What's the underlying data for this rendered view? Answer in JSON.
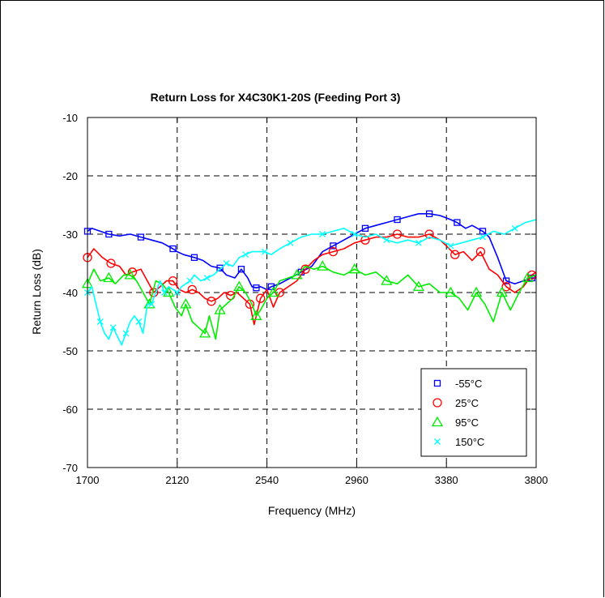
{
  "chart_data": {
    "type": "line",
    "title": "Return Loss for X4C30K1-20S (Feeding Port 3)",
    "xlabel": "Frequency (MHz)",
    "ylabel": "Return Loss (dB)",
    "xlim": [
      1700,
      3800
    ],
    "ylim": [
      -70,
      -10
    ],
    "xticks": [
      1700,
      2120,
      2540,
      2960,
      3380,
      3800
    ],
    "yticks": [
      -10,
      -20,
      -30,
      -40,
      -50,
      -60,
      -70
    ],
    "grid": true,
    "legend_position": "bottom-right",
    "series": [
      {
        "name": "-55°C",
        "color": "#0000ff",
        "marker": "square",
        "x": [
          1700,
          1720,
          1760,
          1800,
          1850,
          1900,
          1950,
          2000,
          2050,
          2100,
          2120,
          2150,
          2200,
          2240,
          2280,
          2320,
          2350,
          2390,
          2420,
          2450,
          2470,
          2490,
          2510,
          2540,
          2560,
          2600,
          2650,
          2700,
          2750,
          2800,
          2850,
          2900,
          2950,
          3000,
          3050,
          3100,
          3150,
          3200,
          3250,
          3300,
          3350,
          3400,
          3430,
          3470,
          3500,
          3550,
          3580,
          3620,
          3660,
          3700,
          3740,
          3780,
          3800
        ],
        "y": [
          -29.5,
          -29,
          -29.5,
          -30,
          -30.3,
          -30,
          -30.5,
          -31,
          -31.5,
          -32.5,
          -33,
          -33.5,
          -34,
          -34.5,
          -35.5,
          -35.8,
          -37,
          -37.5,
          -36,
          -37.5,
          -39,
          -39.2,
          -39,
          -39.5,
          -39,
          -38.5,
          -37.5,
          -36.5,
          -35.5,
          -33,
          -32,
          -31,
          -30,
          -29,
          -28.5,
          -28,
          -27.5,
          -27,
          -26.5,
          -26.5,
          -26.8,
          -27.5,
          -28,
          -29,
          -28.5,
          -29.5,
          -30.5,
          -34,
          -38,
          -38.5,
          -38,
          -37.5,
          -37.5
        ]
      },
      {
        "name": "25°C",
        "color": "#ff0000",
        "marker": "circle",
        "x": [
          1700,
          1730,
          1770,
          1810,
          1850,
          1880,
          1910,
          1950,
          1980,
          2010,
          2040,
          2070,
          2100,
          2130,
          2160,
          2190,
          2220,
          2250,
          2280,
          2310,
          2340,
          2370,
          2400,
          2430,
          2460,
          2480,
          2490,
          2510,
          2540,
          2570,
          2600,
          2640,
          2680,
          2720,
          2760,
          2800,
          2850,
          2900,
          2950,
          3000,
          3050,
          3100,
          3150,
          3200,
          3250,
          3300,
          3350,
          3380,
          3420,
          3460,
          3500,
          3540,
          3580,
          3620,
          3660,
          3700,
          3740,
          3780,
          3800
        ],
        "y": [
          -34,
          -32.5,
          -34,
          -35,
          -35.5,
          -37,
          -36.5,
          -36,
          -38,
          -40,
          -39,
          -38,
          -38,
          -39.5,
          -40,
          -39.5,
          -40,
          -41,
          -41.5,
          -41,
          -40,
          -40.5,
          -40,
          -41,
          -42,
          -45.5,
          -44,
          -41,
          -39.5,
          -42.5,
          -40,
          -39,
          -38,
          -36,
          -34.5,
          -33.5,
          -33,
          -32.5,
          -31.5,
          -31,
          -30.5,
          -30.5,
          -30,
          -30.5,
          -30.5,
          -30,
          -31,
          -32,
          -33.5,
          -33,
          -34.5,
          -33,
          -36,
          -37,
          -39,
          -40,
          -39,
          -37,
          -36.5
        ]
      },
      {
        "name": "95°C",
        "color": "#00ee00",
        "marker": "triangle",
        "x": [
          1700,
          1730,
          1760,
          1800,
          1830,
          1870,
          1900,
          1930,
          1960,
          1990,
          2020,
          2050,
          2080,
          2110,
          2140,
          2160,
          2190,
          2220,
          2250,
          2270,
          2300,
          2320,
          2350,
          2380,
          2410,
          2440,
          2470,
          2490,
          2510,
          2540,
          2570,
          2600,
          2640,
          2680,
          2720,
          2760,
          2800,
          2850,
          2900,
          2950,
          3000,
          3050,
          3100,
          3150,
          3200,
          3250,
          3300,
          3350,
          3400,
          3440,
          3480,
          3520,
          3560,
          3600,
          3640,
          3680,
          3720,
          3760,
          3800
        ],
        "y": [
          -38.5,
          -36,
          -38,
          -37.5,
          -38.5,
          -37,
          -37,
          -38,
          -40,
          -42,
          -38,
          -38.5,
          -40,
          -42.5,
          -44,
          -42,
          -45,
          -46,
          -47,
          -44,
          -48,
          -43,
          -42,
          -41,
          -39,
          -40,
          -42,
          -44,
          -43,
          -41,
          -40,
          -38,
          -37.5,
          -37,
          -35.5,
          -36,
          -35.5,
          -36.5,
          -37,
          -36,
          -37,
          -36.5,
          -38,
          -38.5,
          -37,
          -39,
          -38.5,
          -40,
          -40,
          -41,
          -43,
          -40,
          -42,
          -45,
          -40,
          -43,
          -40,
          -37.5,
          -37
        ]
      },
      {
        "name": "150°C",
        "color": "#00ffff",
        "marker": "x",
        "x": [
          1700,
          1720,
          1740,
          1760,
          1780,
          1800,
          1820,
          1840,
          1860,
          1880,
          1900,
          1920,
          1940,
          1960,
          1980,
          2000,
          2020,
          2040,
          2060,
          2080,
          2100,
          2120,
          2140,
          2160,
          2180,
          2200,
          2230,
          2260,
          2290,
          2320,
          2350,
          2380,
          2410,
          2440,
          2470,
          2500,
          2530,
          2560,
          2600,
          2650,
          2700,
          2750,
          2800,
          2850,
          2900,
          2950,
          3000,
          3050,
          3100,
          3150,
          3200,
          3250,
          3300,
          3350,
          3400,
          3450,
          3500,
          3550,
          3600,
          3650,
          3700,
          3750,
          3800
        ],
        "y": [
          -40,
          -39,
          -42,
          -45,
          -47,
          -48,
          -46,
          -47.5,
          -49,
          -47,
          -45,
          -44,
          -45,
          -47,
          -42,
          -42,
          -40,
          -38,
          -40,
          -39,
          -39.5,
          -40,
          -39,
          -38.5,
          -38,
          -37,
          -38,
          -37.5,
          -37,
          -36,
          -35,
          -35.5,
          -34,
          -33.5,
          -33,
          -33,
          -33,
          -33.5,
          -32.5,
          -31.5,
          -30.5,
          -30,
          -30,
          -29.5,
          -29,
          -30,
          -30.5,
          -30,
          -31,
          -31.5,
          -31,
          -31.5,
          -30.5,
          -31,
          -32,
          -31.5,
          -31,
          -30.5,
          -29.5,
          -30,
          -29,
          -28,
          -27.5
        ]
      }
    ]
  }
}
